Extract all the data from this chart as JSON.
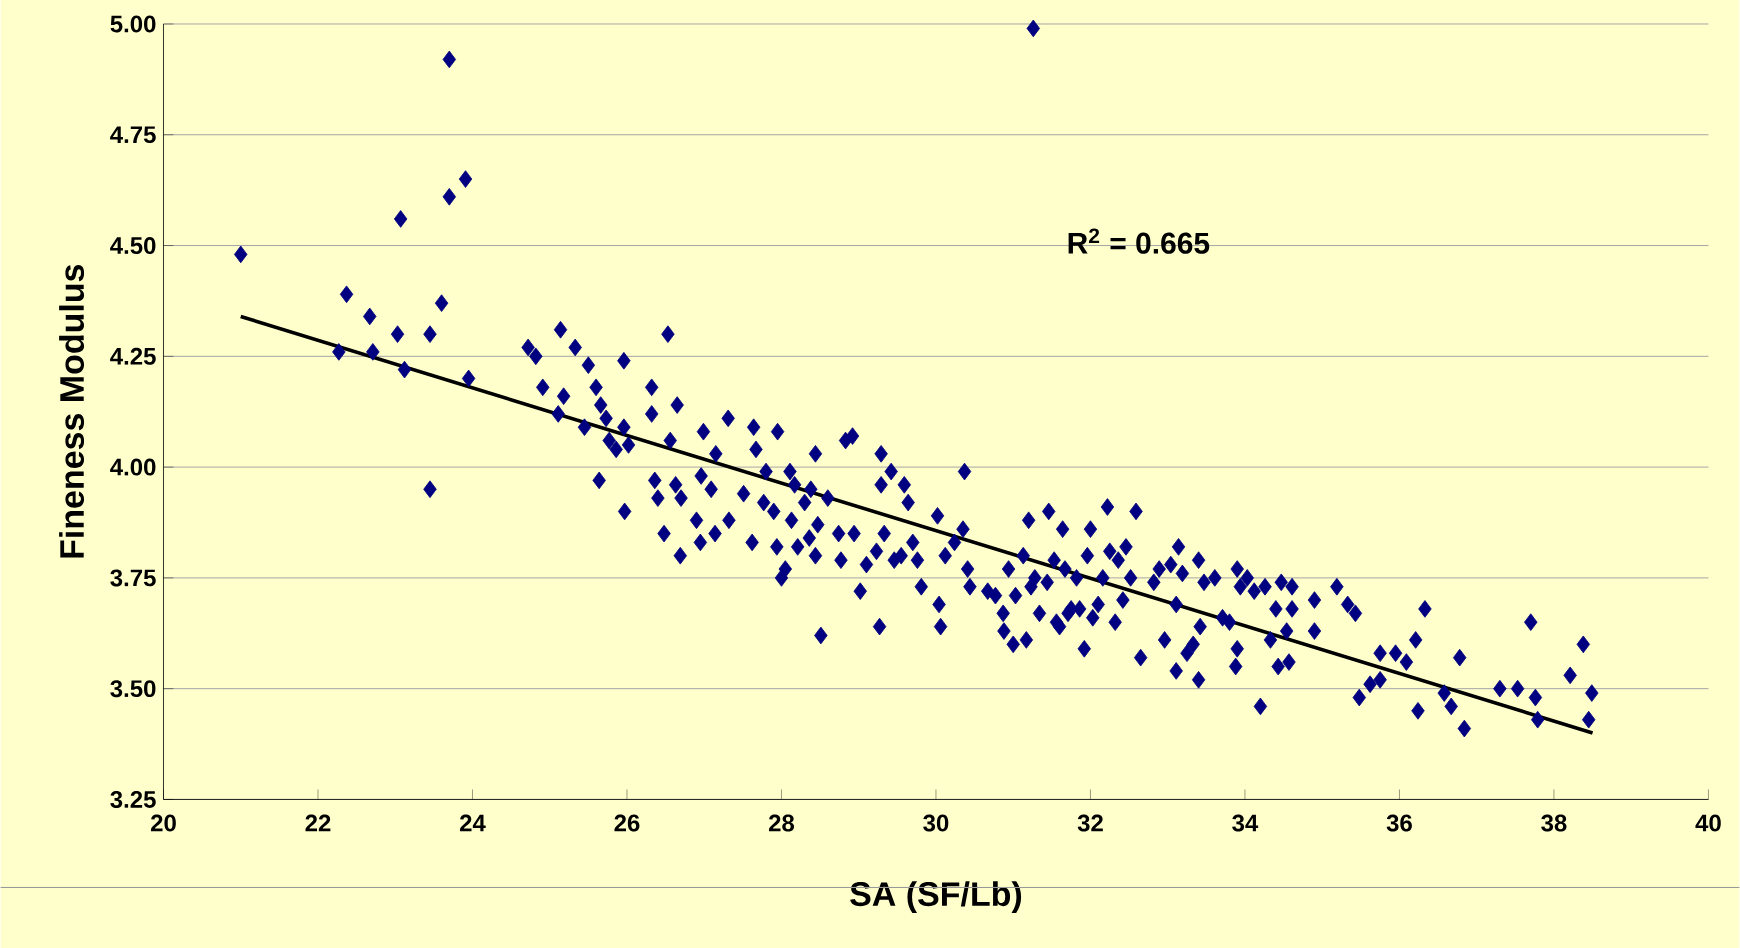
{
  "chart_data": {
    "type": "scatter",
    "xlabel": "SA (SF/Lb)",
    "ylabel": "Fineness Modulus",
    "annotations": [
      "R$^{2}$ = 0.665"
    ],
    "xlim": [
      20,
      40
    ],
    "ylim": [
      3.25,
      5.0
    ],
    "xticks": [
      20,
      22,
      24,
      26,
      28,
      30,
      32,
      34,
      36,
      38,
      40
    ],
    "yticks": [
      {
        "value": 3.25,
        "label": "3.25"
      },
      {
        "value": 3.5,
        "label": "3.50"
      },
      {
        "value": 3.75,
        "label": "3.75"
      },
      {
        "value": 4.0,
        "label": "4.00"
      },
      {
        "value": 4.25,
        "label": "4.25"
      },
      {
        "value": 4.5,
        "label": "4.50"
      },
      {
        "value": 4.75,
        "label": "4.75"
      },
      {
        "value": 5.0,
        "label": "5.00"
      }
    ],
    "grid": "y",
    "marker": "diamond",
    "series": [
      {
        "color": "#000080",
        "x": [
          21.0,
          22.37,
          22.27,
          22.67,
          22.71,
          23.07,
          23.03,
          23.12,
          23.7,
          23.7,
          23.91,
          23.6,
          23.45,
          23.45,
          23.95,
          31.26,
          24.72,
          24.82,
          24.91,
          25.14,
          25.11,
          25.33,
          25.18,
          25.5,
          25.45,
          25.6,
          25.66,
          25.64,
          25.73,
          25.77,
          25.86,
          25.96,
          25.96,
          26.02,
          25.97,
          26.32,
          26.32,
          26.53,
          26.56,
          26.36,
          26.4,
          26.48,
          26.65,
          26.63,
          26.7,
          26.69,
          26.99,
          26.96,
          26.9,
          26.95,
          27.15,
          27.09,
          27.14,
          27.31,
          27.32,
          27.51,
          27.64,
          27.67,
          27.62,
          27.77,
          27.8,
          27.95,
          27.9,
          27.94,
          28.0,
          28.05,
          28.11,
          28.17,
          28.13,
          28.21,
          28.3,
          28.36,
          28.38,
          28.44,
          28.47,
          28.44,
          28.51,
          28.6,
          28.74,
          28.77,
          28.83,
          28.92,
          28.94,
          29.02,
          29.1,
          29.23,
          29.29,
          29.29,
          29.33,
          29.27,
          29.42,
          29.46,
          29.55,
          29.59,
          29.64,
          29.7,
          29.76,
          29.81,
          30.02,
          30.04,
          30.06,
          30.12,
          30.24,
          30.35,
          30.37,
          30.41,
          30.44,
          30.67,
          30.77,
          30.87,
          30.88,
          30.94,
          31.0,
          31.03,
          31.13,
          31.17,
          31.2,
          31.23,
          31.28,
          31.34,
          31.44,
          31.46,
          31.53,
          31.56,
          31.6,
          31.64,
          31.67,
          31.71,
          31.75,
          31.82,
          31.86,
          31.92,
          31.96,
          32.0,
          32.03,
          32.1,
          32.16,
          32.22,
          32.25,
          32.32,
          32.36,
          32.42,
          32.46,
          32.52,
          32.59,
          32.65,
          32.82,
          32.89,
          32.96,
          33.04,
          33.11,
          33.14,
          33.19,
          33.11,
          33.25,
          33.33,
          33.4,
          33.42,
          33.4,
          33.47,
          33.61,
          33.71,
          33.8,
          33.9,
          33.94,
          33.9,
          33.88,
          34.03,
          34.12,
          34.2,
          34.26,
          34.33,
          34.4,
          34.43,
          34.47,
          34.54,
          34.61,
          34.57,
          34.61,
          34.9,
          34.9,
          35.19,
          35.33,
          35.43,
          35.48,
          35.62,
          35.75,
          35.75,
          35.95,
          36.09,
          36.21,
          36.24,
          36.33,
          36.58,
          36.67,
          36.78,
          36.84,
          37.3,
          37.53,
          37.7,
          37.76,
          37.79,
          38.21,
          38.38,
          38.45,
          38.49
        ],
        "values": [
          4.48,
          4.39,
          4.26,
          4.34,
          4.26,
          4.56,
          4.3,
          4.22,
          4.92,
          4.61,
          4.65,
          4.37,
          4.3,
          3.95,
          4.2,
          4.99,
          4.27,
          4.25,
          4.18,
          4.31,
          4.12,
          4.27,
          4.16,
          4.23,
          4.09,
          4.18,
          4.14,
          3.97,
          4.11,
          4.06,
          4.04,
          4.24,
          4.09,
          4.05,
          3.9,
          4.18,
          4.12,
          4.3,
          4.06,
          3.97,
          3.93,
          3.85,
          4.14,
          3.96,
          3.93,
          3.8,
          4.08,
          3.98,
          3.88,
          3.83,
          4.03,
          3.95,
          3.85,
          4.11,
          3.88,
          3.94,
          4.09,
          4.04,
          3.83,
          3.92,
          3.99,
          4.08,
          3.9,
          3.82,
          3.75,
          3.77,
          3.99,
          3.96,
          3.88,
          3.82,
          3.92,
          3.84,
          3.95,
          4.03,
          3.87,
          3.8,
          3.62,
          3.93,
          3.85,
          3.79,
          4.06,
          4.07,
          3.85,
          3.72,
          3.78,
          3.81,
          4.03,
          3.96,
          3.85,
          3.64,
          3.99,
          3.79,
          3.8,
          3.96,
          3.92,
          3.83,
          3.79,
          3.73,
          3.89,
          3.69,
          3.64,
          3.8,
          3.83,
          3.86,
          3.99,
          3.77,
          3.73,
          3.72,
          3.71,
          3.67,
          3.63,
          3.77,
          3.6,
          3.71,
          3.8,
          3.61,
          3.88,
          3.73,
          3.75,
          3.67,
          3.74,
          3.9,
          3.79,
          3.65,
          3.64,
          3.86,
          3.77,
          3.67,
          3.68,
          3.75,
          3.68,
          3.59,
          3.8,
          3.86,
          3.66,
          3.69,
          3.75,
          3.91,
          3.81,
          3.65,
          3.79,
          3.7,
          3.82,
          3.75,
          3.9,
          3.57,
          3.74,
          3.77,
          3.61,
          3.78,
          3.69,
          3.82,
          3.76,
          3.54,
          3.58,
          3.6,
          3.79,
          3.64,
          3.52,
          3.74,
          3.75,
          3.66,
          3.65,
          3.77,
          3.73,
          3.59,
          3.55,
          3.75,
          3.72,
          3.46,
          3.73,
          3.61,
          3.68,
          3.55,
          3.74,
          3.63,
          3.68,
          3.56,
          3.73,
          3.63,
          3.7,
          3.73,
          3.69,
          3.67,
          3.48,
          3.51,
          3.52,
          3.58,
          3.58,
          3.56,
          3.61,
          3.45,
          3.68,
          3.49,
          3.46,
          3.57,
          3.41,
          3.5,
          3.5,
          3.65,
          3.48,
          3.43,
          3.53,
          3.6,
          3.43,
          3.49
        ]
      },
      {
        "type": "line",
        "color": "#000000",
        "marker": "none",
        "x": [
          21.0,
          38.5
        ],
        "values": [
          4.34,
          3.4
        ]
      }
    ]
  }
}
